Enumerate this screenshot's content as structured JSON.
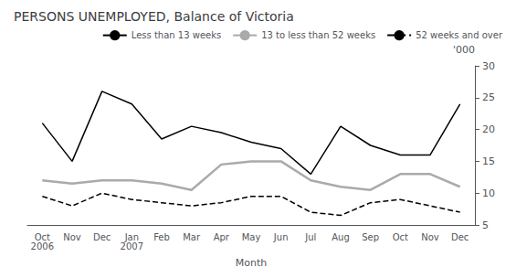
{
  "chart_data": {
    "type": "line",
    "title": "PERSONS UNEMPLOYED, Balance of Victoria",
    "xlabel": "Month",
    "ylabel": "'000",
    "categories": [
      "Oct\n2006",
      "Nov",
      "Dec",
      "Jan\n2007",
      "Feb",
      "Mar",
      "Apr",
      "May",
      "Jun",
      "Jul",
      "Aug",
      "Sep",
      "Oct",
      "Nov",
      "Dec"
    ],
    "series": [
      {
        "name": "Less than 13 weeks",
        "color": "#000000",
        "line_style": "solid",
        "values": [
          21,
          15,
          26,
          24,
          18.5,
          20.5,
          19.5,
          18,
          17,
          13,
          20.5,
          17.5,
          16,
          16,
          24
        ]
      },
      {
        "name": "13 to less than 52 weeks",
        "color": "#aaaaaa",
        "line_style": "solid",
        "values": [
          12,
          11.5,
          12,
          12,
          11.5,
          10.5,
          14.5,
          15,
          15,
          12,
          11,
          10.5,
          13,
          13,
          11
        ]
      },
      {
        "name": "52 weeks and over",
        "color": "#000000",
        "line_style": "dashed",
        "values": [
          9.5,
          8,
          10,
          9,
          8.5,
          8,
          8.5,
          9.5,
          9.5,
          7,
          6.5,
          8.5,
          9,
          8,
          7
        ]
      }
    ],
    "ylim": [
      5,
      30
    ],
    "yticks": [
      5,
      10,
      15,
      20,
      25,
      30
    ],
    "grid": false,
    "legend": "upper right"
  }
}
